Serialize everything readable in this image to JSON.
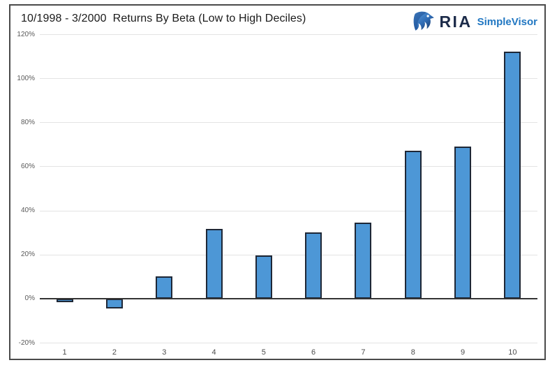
{
  "header": {
    "title": "10/1998 - 3/2000  Returns By Beta (Low to High Deciles)"
  },
  "logo": {
    "icon": "eagle-icon",
    "brand": "RIA",
    "product": "SimpleVisor",
    "brand_color": "#1c2b49",
    "product_color": "#2177c2"
  },
  "chart_data": {
    "type": "bar",
    "title": "10/1998 - 3/2000  Returns By Beta (Low to High Deciles)",
    "xlabel": "",
    "ylabel": "",
    "categories": [
      "1",
      "2",
      "3",
      "4",
      "5",
      "6",
      "7",
      "8",
      "9",
      "10"
    ],
    "values": [
      -1.5,
      -4.5,
      10,
      31.5,
      19.5,
      30,
      34.5,
      67,
      69,
      112
    ],
    "value_unit": "%",
    "ylim": [
      -20,
      120
    ],
    "yticks": [
      {
        "value": 120,
        "label": "120%"
      },
      {
        "value": 100,
        "label": "100%"
      },
      {
        "value": 80,
        "label": "80%"
      },
      {
        "value": 60,
        "label": "60%"
      },
      {
        "value": 40,
        "label": "40%"
      },
      {
        "value": 20,
        "label": "20%"
      },
      {
        "value": 0,
        "label": "0%"
      },
      {
        "value": -20,
        "label": "-20%"
      }
    ],
    "grid": true,
    "legend": false,
    "bar_fill": "#4D97D6",
    "bar_border": "#1E2736",
    "gridline_color": "#e3e3e3",
    "axis_color": "#333333"
  }
}
